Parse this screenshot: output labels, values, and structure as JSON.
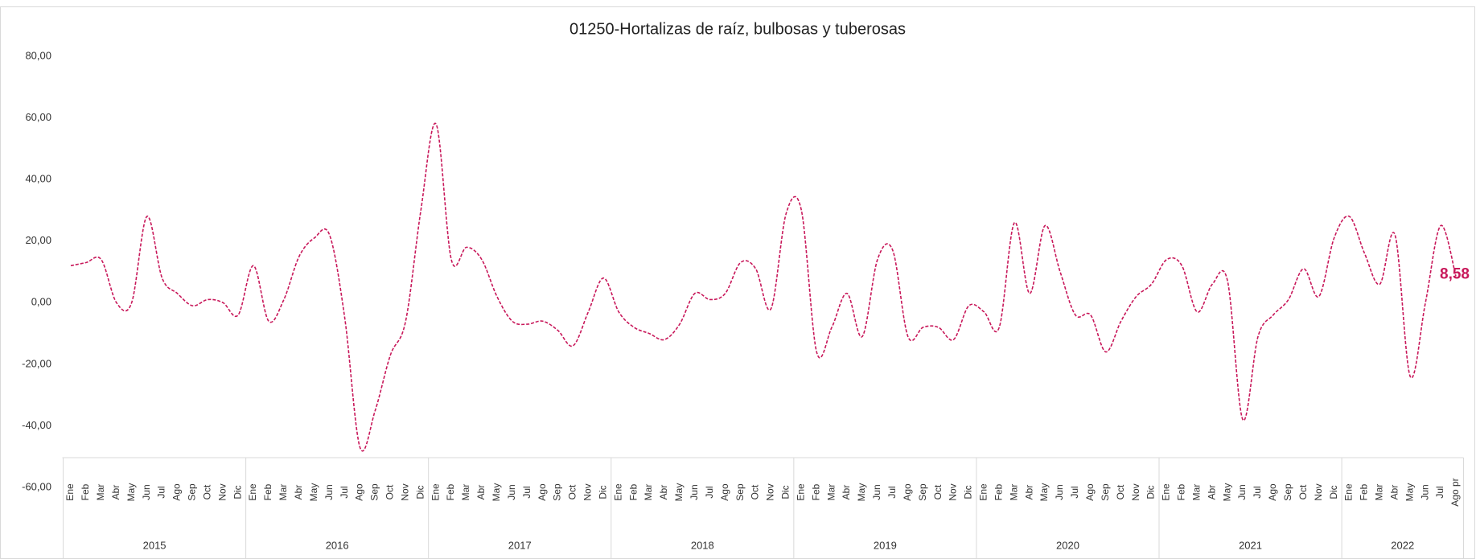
{
  "chart_data": {
    "type": "line",
    "title": "01250-Hortalizas de raíz, bulbosas y tuberosas",
    "categories": [
      "Ene",
      "Feb",
      "Mar",
      "Abr",
      "May",
      "Jun",
      "Jul",
      "Ago",
      "Sep",
      "Oct",
      "Nov",
      "Dic",
      "Ene",
      "Feb",
      "Mar",
      "Abr",
      "May",
      "Jun",
      "Jul",
      "Ago",
      "Sep",
      "Oct",
      "Nov",
      "Dic",
      "Ene",
      "Feb",
      "Mar",
      "Abr",
      "May",
      "Jun",
      "Jul",
      "Ago",
      "Sep",
      "Oct",
      "Nov",
      "Dic",
      "Ene",
      "Feb",
      "Mar",
      "Abr",
      "May",
      "Jun",
      "Jul",
      "Ago",
      "Sep",
      "Oct",
      "Nov",
      "Dic",
      "Ene",
      "Feb",
      "Mar",
      "Abr",
      "May",
      "Jun",
      "Jul",
      "Ago",
      "Sep",
      "Oct",
      "Nov",
      "Dic",
      "Ene",
      "Feb",
      "Mar",
      "Abr",
      "May",
      "Jun",
      "Jul",
      "Ago",
      "Sep",
      "Oct",
      "Nov",
      "Dic",
      "Ene",
      "Feb",
      "Mar",
      "Abr",
      "May",
      "Jun",
      "Jul",
      "Ago",
      "Sep",
      "Oct",
      "Nov",
      "Dic",
      "Ene",
      "Feb",
      "Mar",
      "Abr",
      "May",
      "Jun",
      "Jul",
      "Ago pr"
    ],
    "years": [
      "2015",
      "2016",
      "2017",
      "2018",
      "2019",
      "2020",
      "2021",
      "2022"
    ],
    "series": [
      {
        "color": "#c8185a",
        "values": [
          12,
          13,
          14,
          0,
          0,
          28,
          8,
          3,
          -1,
          1,
          0,
          -4,
          12,
          -6,
          1,
          15,
          21,
          22,
          -5,
          -47,
          -35,
          -17,
          -6,
          30,
          58,
          14,
          18,
          14,
          2,
          -6,
          -7,
          -6,
          -9,
          -14,
          -3,
          8,
          -3,
          -8,
          -10,
          -12,
          -7,
          3,
          1,
          3,
          13,
          11,
          -2,
          29,
          30,
          -16,
          -8,
          3,
          -11,
          14,
          17,
          -11,
          -8,
          -8,
          -12,
          -1,
          -3,
          -8,
          26,
          3,
          25,
          10,
          -4,
          -4,
          -16,
          -6,
          2,
          6,
          14,
          12,
          -3,
          6,
          7,
          -38,
          -11,
          -4,
          1,
          11,
          2,
          21,
          28,
          16,
          6,
          22,
          -24,
          0,
          25,
          8.58
        ]
      }
    ],
    "last_value_label": "8,58",
    "ylim": [
      -60,
      80
    ],
    "yticks": [
      {
        "value": -60,
        "label": "-60,00"
      },
      {
        "value": -40,
        "label": "-40,00"
      },
      {
        "value": -20,
        "label": "-20,00"
      },
      {
        "value": 0,
        "label": "0,00"
      },
      {
        "value": 20,
        "label": "20,00"
      },
      {
        "value": 40,
        "label": "40,00"
      },
      {
        "value": 60,
        "label": "60,00"
      },
      {
        "value": 80,
        "label": "80,00"
      }
    ],
    "grid": false
  }
}
